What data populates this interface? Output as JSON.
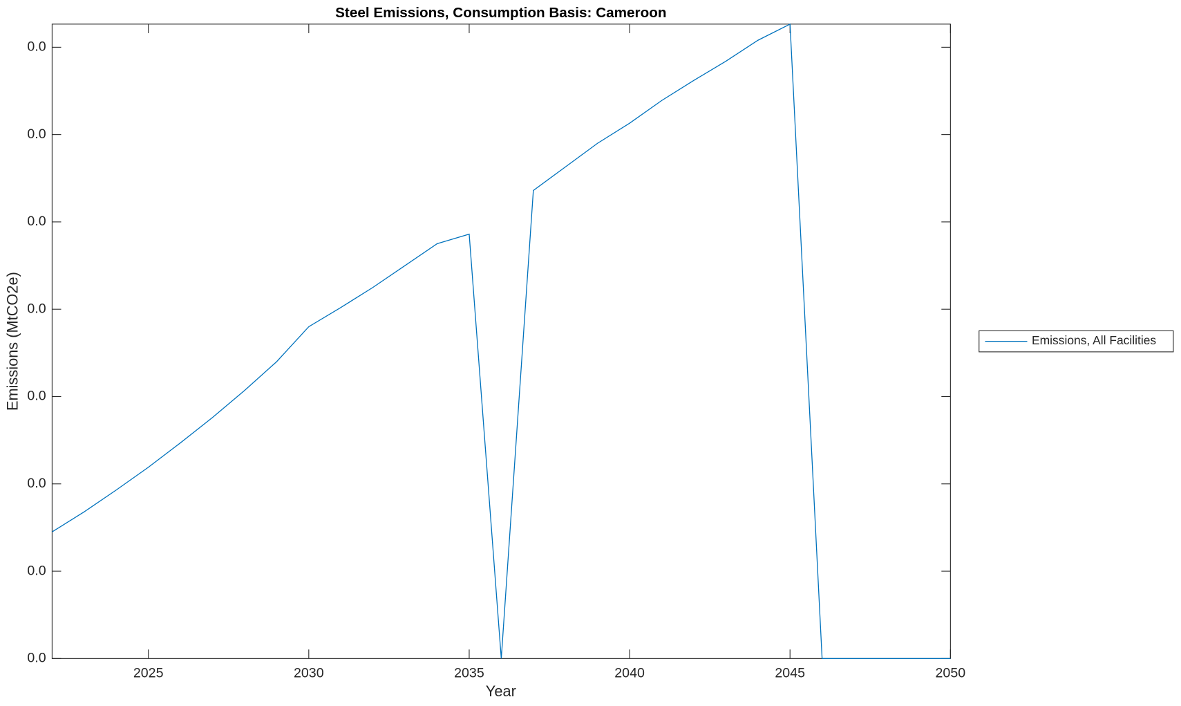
{
  "chart_data": {
    "type": "line",
    "title": "Steel Emissions, Consumption Basis: Cameroon",
    "x_label": "Year",
    "y_label": "Emissions (MtCO2e)",
    "x": [
      2022,
      2023,
      2024,
      2025,
      2026,
      2027,
      2028,
      2029,
      2030,
      2031,
      2032,
      2033,
      2034,
      2035,
      2036,
      2037,
      2038,
      2039,
      2040,
      2041,
      2042,
      2043,
      2044,
      2045,
      2046,
      2047,
      2048,
      2049,
      2050
    ],
    "series": [
      {
        "name": "Emissions, All Facilities",
        "color": "#0072bd",
        "values": [
          0.00145,
          0.00168,
          0.00193,
          0.00219,
          0.00247,
          0.00276,
          0.00307,
          0.0034,
          0.0038,
          0.00402,
          0.00425,
          0.0045,
          0.00475,
          0.00486,
          0,
          0.00536,
          0.00563,
          0.0059,
          0.00613,
          0.00639,
          0.00662,
          0.00684,
          0.00708,
          0.007265,
          0,
          0,
          0,
          0,
          0
        ]
      }
    ],
    "xlim": [
      2022,
      2050
    ],
    "xticks": [
      2025,
      2030,
      2035,
      2040,
      2045,
      2050
    ],
    "ylim": [
      0,
      0.007265
    ],
    "yticks": [
      {
        "value": 0,
        "label": "0.0"
      },
      {
        "value": 0.001,
        "label": "0.0"
      },
      {
        "value": 0.002,
        "label": "0.0"
      },
      {
        "value": 0.003,
        "label": "0.0"
      },
      {
        "value": 0.004,
        "label": "0.0"
      },
      {
        "value": 0.005,
        "label": "0.0"
      },
      {
        "value": 0.006,
        "label": "0.0"
      },
      {
        "value": 0.007,
        "label": "0.0"
      }
    ],
    "grid": false,
    "legend": "east-outside"
  }
}
